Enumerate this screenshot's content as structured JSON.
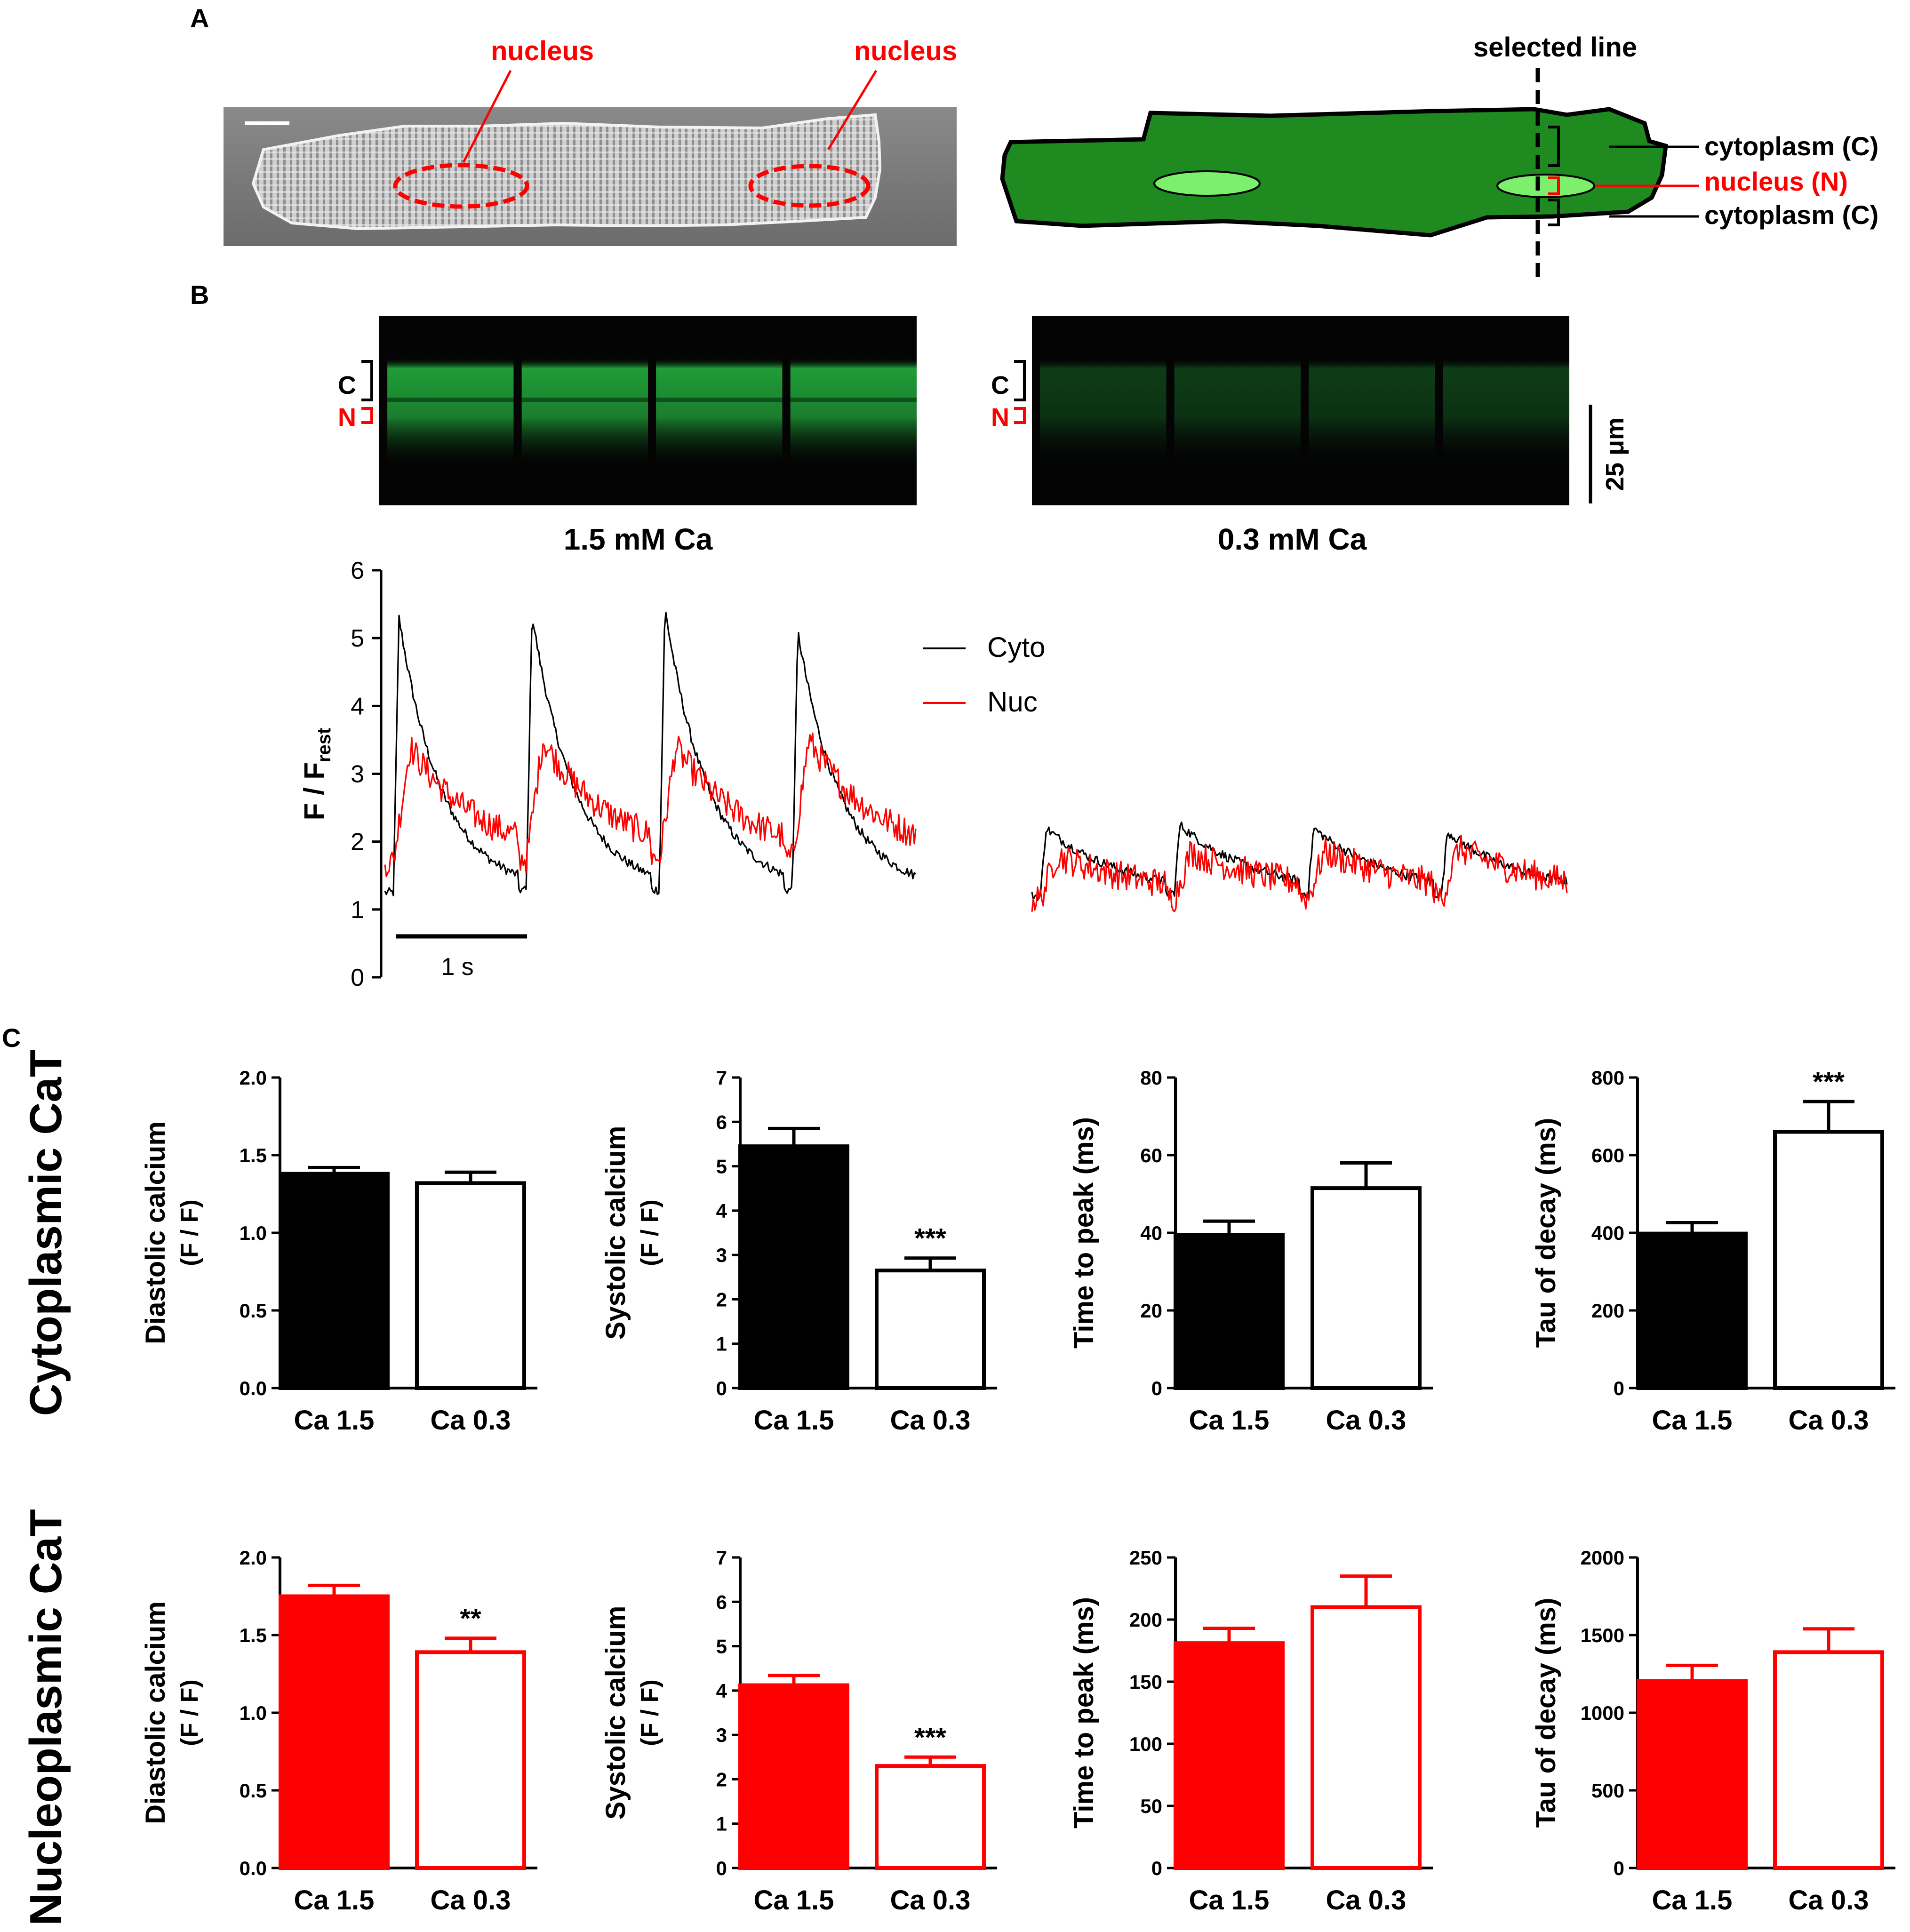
{
  "panel_letters": {
    "a": "A",
    "b": "B",
    "c": "C"
  },
  "panel_a": {
    "nucleus_label_left": "nucleus",
    "nucleus_label_right": "nucleus",
    "selected_line": "selected line",
    "cytoplasm_top": "cytoplasm (C)",
    "nucleus_n": "nucleus (N)",
    "cytoplasm_bottom": "cytoplasm (C)"
  },
  "panel_b": {
    "linescan_left_c": "C",
    "linescan_left_n": "N",
    "linescan_right_c": "C",
    "linescan_right_n": "N",
    "scalebar_um": "25 μm",
    "condition_left": "1.5 mM Ca",
    "condition_right": "0.3 mM Ca",
    "time_scale": "1 s"
  },
  "colors": {
    "control_fill": "#000000",
    "nucleo_fill": "#ff0000",
    "cell_green": "#1f8a1f",
    "nucleus_green": "#7cf06c",
    "linescan_green": "#21a43a"
  },
  "row_labels": {
    "top": "Cytoplasmic CaT",
    "bottom": "Nucleoplasmic CaT"
  },
  "chart_data": [
    {
      "id": "traces",
      "type": "line",
      "ylabel_main": "F / F",
      "ylabel_sub": "rest",
      "ylim": [
        0,
        6
      ],
      "yticks": [
        "0",
        "1",
        "2",
        "3",
        "4",
        "5",
        "6"
      ],
      "legend": [
        "Cyto",
        "Nuc"
      ],
      "legend_position": "right",
      "series": [
        {
          "name": "Cyto",
          "condition": "1.5 mM Ca",
          "baseline": 1.25,
          "peaks": [
            5.3,
            5.35,
            5.45,
            5.1
          ],
          "tau_s": 0.33
        },
        {
          "name": "Nuc",
          "condition": "1.5 mM Ca",
          "baseline": 1.7,
          "peaks": [
            3.4,
            3.5,
            3.4,
            3.5
          ],
          "tau_s": 0.55
        },
        {
          "name": "Cyto",
          "condition": "0.3 mM Ca",
          "baseline": 1.2,
          "peaks": [
            2.2,
            2.25,
            2.2,
            2.15
          ],
          "tau_s": 0.6
        },
        {
          "name": "Nuc",
          "condition": "0.3 mM Ca",
          "baseline": 1.15,
          "peaks": [
            1.8,
            1.85,
            1.85,
            1.9
          ],
          "tau_s": 0.8
        }
      ]
    },
    {
      "id": "cyto_diastolic",
      "type": "bar",
      "row": "Cytoplasmic CaT",
      "ylabel_main": "Diastolic calcium",
      "ylabel_sub": "(F / F)",
      "categories": [
        "Ca 1.5",
        "Ca 0.3"
      ],
      "values": [
        1.38,
        1.32
      ],
      "errors": [
        0.04,
        0.07
      ],
      "ylim": [
        0,
        2.0
      ],
      "yticks": [
        "0.0",
        "0.5",
        "1.0",
        "1.5",
        "2.0"
      ],
      "significance": [
        "",
        ""
      ]
    },
    {
      "id": "cyto_systolic",
      "type": "bar",
      "row": "Cytoplasmic CaT",
      "ylabel_main": "Systolic calcium",
      "ylabel_sub": "(F / F)",
      "categories": [
        "Ca 1.5",
        "Ca 0.3"
      ],
      "values": [
        5.45,
        2.65
      ],
      "errors": [
        0.4,
        0.28
      ],
      "ylim": [
        0,
        7
      ],
      "yticks": [
        "0",
        "1",
        "2",
        "3",
        "4",
        "5",
        "6",
        "7"
      ],
      "significance": [
        "",
        "***"
      ]
    },
    {
      "id": "cyto_ttp",
      "type": "bar",
      "row": "Cytoplasmic CaT",
      "ylabel_main": "Time to peak (ms)",
      "categories": [
        "Ca 1.5",
        "Ca 0.3"
      ],
      "values": [
        39.5,
        51.5
      ],
      "errors": [
        3.5,
        6.5
      ],
      "ylim": [
        0,
        80
      ],
      "yticks": [
        "0",
        "20",
        "40",
        "60",
        "80"
      ],
      "significance": [
        "",
        ""
      ]
    },
    {
      "id": "cyto_tau",
      "type": "bar",
      "row": "Cytoplasmic CaT",
      "ylabel_main": "Tau of decay (ms)",
      "categories": [
        "Ca 1.5",
        "Ca 0.3"
      ],
      "values": [
        398,
        660
      ],
      "errors": [
        28,
        78
      ],
      "ylim": [
        0,
        800
      ],
      "yticks": [
        "0",
        "200",
        "400",
        "600",
        "800"
      ],
      "significance": [
        "",
        "***"
      ]
    },
    {
      "id": "nuc_diastolic",
      "type": "bar",
      "row": "Nucleoplasmic CaT",
      "ylabel_main": "Diastolic calcium",
      "ylabel_sub": "(F / F)",
      "categories": [
        "Ca 1.5",
        "Ca 0.3"
      ],
      "values": [
        1.75,
        1.39
      ],
      "errors": [
        0.07,
        0.09
      ],
      "ylim": [
        0,
        2.0
      ],
      "yticks": [
        "0.0",
        "0.5",
        "1.0",
        "1.5",
        "2.0"
      ],
      "significance": [
        "",
        "**"
      ]
    },
    {
      "id": "nuc_systolic",
      "type": "bar",
      "row": "Nucleoplasmic CaT",
      "ylabel_main": "Systolic calcium",
      "ylabel_sub": "(F / F)",
      "categories": [
        "Ca 1.5",
        "Ca 0.3"
      ],
      "values": [
        4.12,
        2.3
      ],
      "errors": [
        0.22,
        0.2
      ],
      "ylim": [
        0,
        7
      ],
      "yticks": [
        "0",
        "1",
        "2",
        "3",
        "4",
        "5",
        "6",
        "7"
      ],
      "significance": [
        "",
        "***"
      ]
    },
    {
      "id": "nuc_ttp",
      "type": "bar",
      "row": "Nucleoplasmic CaT",
      "ylabel_main": "Time to peak (ms)",
      "categories": [
        "Ca 1.5",
        "Ca 0.3"
      ],
      "values": [
        181,
        210
      ],
      "errors": [
        12,
        25
      ],
      "ylim": [
        0,
        250
      ],
      "yticks": [
        "0",
        "50",
        "100",
        "150",
        "200",
        "250"
      ],
      "significance": [
        "",
        ""
      ]
    },
    {
      "id": "nuc_tau",
      "type": "bar",
      "row": "Nucleoplasmic CaT",
      "ylabel_main": "Tau of decay (ms)",
      "categories": [
        "Ca 1.5",
        "Ca 0.3"
      ],
      "values": [
        1205,
        1390
      ],
      "errors": [
        100,
        150
      ],
      "ylim": [
        0,
        2000
      ],
      "yticks": [
        "0",
        "500",
        "1000",
        "1500",
        "2000"
      ],
      "significance": [
        "",
        ""
      ]
    }
  ]
}
